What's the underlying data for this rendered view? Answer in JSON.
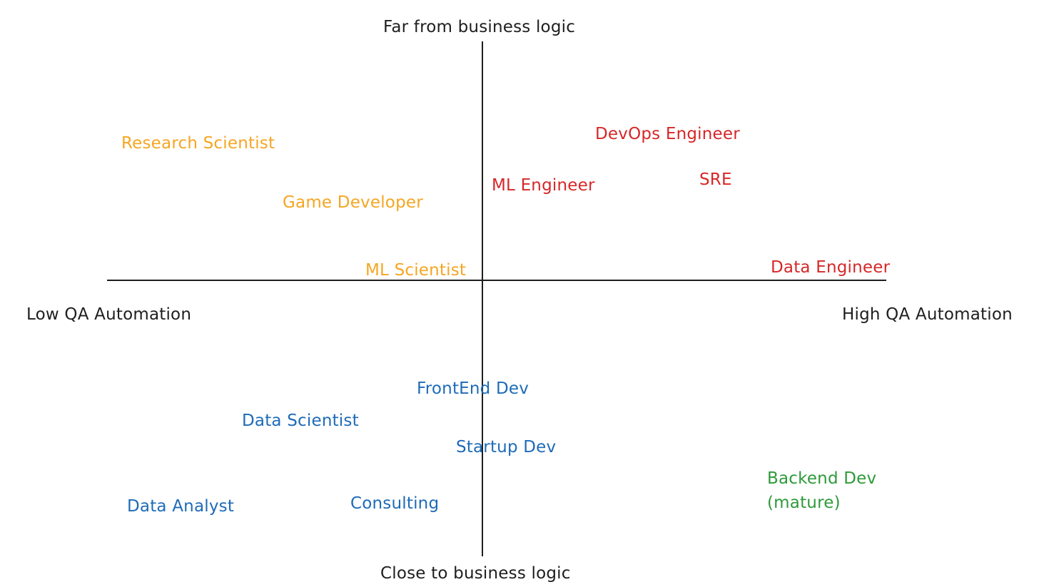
{
  "axes": {
    "top": "Far from business logic",
    "bottom": "Close to business logic",
    "left": "Low QA Automation",
    "right": "High QA Automation"
  },
  "colors": {
    "axis": "#1e1e1e",
    "orange": "#f5a623",
    "red": "#d62728",
    "blue": "#1e6bb8",
    "green": "#2e9a3a"
  },
  "roles": {
    "research_scientist": "Research Scientist",
    "game_developer": "Game Developer",
    "ml_scientist": "ML Scientist",
    "ml_engineer": "ML Engineer",
    "devops_engineer": "DevOps Engineer",
    "sre": "SRE",
    "data_engineer": "Data Engineer",
    "frontend_dev": "FrontEnd Dev",
    "data_scientist": "Data Scientist",
    "startup_dev": "Startup Dev",
    "data_analyst": "Data Analyst",
    "consulting": "Consulting",
    "backend_dev_line1": "Backend Dev",
    "backend_dev_line2": "(mature)"
  }
}
